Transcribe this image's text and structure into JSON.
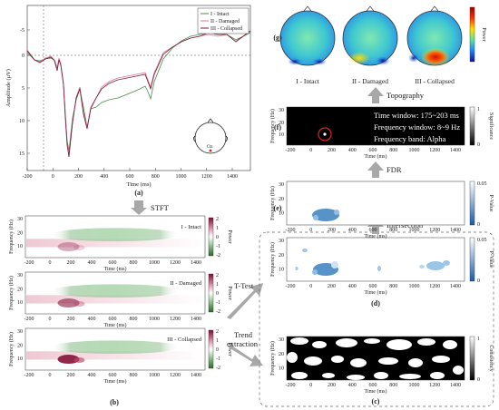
{
  "panel_labels": {
    "a": "(a)",
    "b": "(b)",
    "c": "(c)",
    "d": "(d)",
    "e": "(e)",
    "f": "(f)",
    "g": "(g)"
  },
  "arrows": {
    "stft": "STFT",
    "ttest": "T-Test",
    "trend": "Trend\nextraction",
    "intersection": "Intersection",
    "fdr": "FDR",
    "topography": "Topography"
  },
  "erp": {
    "ylabel": "Amplitude (μV)",
    "xlabel": "Time (ms)",
    "electrode": "Oz",
    "legend": [
      "I - Intact",
      "II - Damaged",
      "III - Collapsed"
    ],
    "xticks": [
      "-200",
      "0",
      "200",
      "400",
      "600",
      "800",
      "1000",
      "1200",
      "1400"
    ],
    "yticks": [
      "-5",
      "0",
      "5",
      "10",
      "15"
    ]
  },
  "tf": {
    "ylabel": "Frequency (Hz)",
    "xlabel": "Time (ms)",
    "yticks": [
      "30",
      "20",
      "10"
    ],
    "xticks": [
      "-200",
      "0",
      "200",
      "400",
      "600",
      "800",
      "1000",
      "1200",
      "1400"
    ],
    "conditions": [
      "I - Intact",
      "II - Damaged",
      "III - Collapsed"
    ],
    "cbar_label": "Power",
    "cbar_ticks": [
      "2",
      "1",
      "0",
      "-1",
      "-2"
    ]
  },
  "stats": {
    "pvalue_label": "P-Value",
    "pvalue_ticks": [
      "0.05",
      "0"
    ],
    "consistency_label": "Consistency",
    "consistency_ticks": [
      "1",
      "0"
    ],
    "significance_label": "Significance",
    "significance_ticks": [
      "1",
      "0"
    ]
  },
  "result": {
    "line1": "Time window: 175~203 ms",
    "line2": "Frequency window: 8~9 Hz",
    "line3": "Frequency band: Alpha"
  },
  "topo": {
    "labels": [
      "I - Intact",
      "II - Damaged",
      "III - Collapsed"
    ],
    "cbar_label": "Power",
    "colors": {
      "low": "#1f3fbf",
      "mid": "#4fd0a0",
      "high": "#d62020"
    }
  },
  "colors": {
    "intact": "#4c8a4c",
    "damaged": "#d77a9a",
    "collapsed": "#7a1a3a",
    "arrow": "#a8a8a8",
    "blob": "#3a7fc0"
  }
}
